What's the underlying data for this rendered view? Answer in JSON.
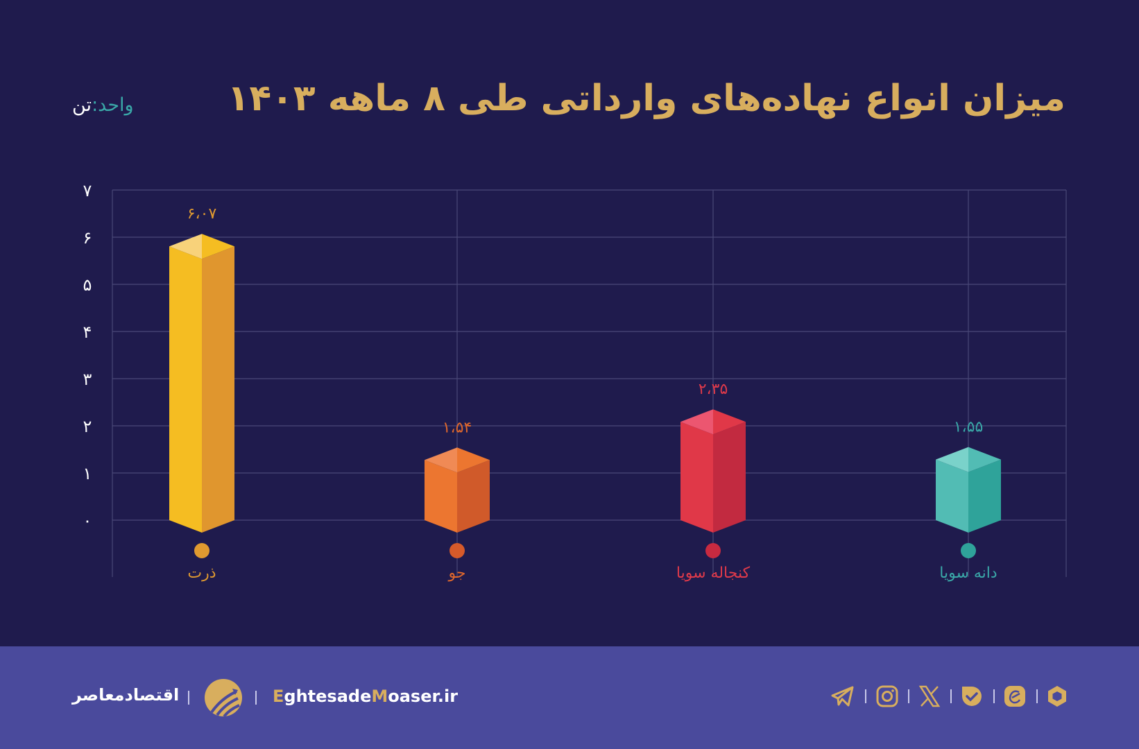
{
  "header": {
    "title": "میزان انواع نهاده‌های وارداتی طی ۸ ماهه ۱۴۰۳",
    "unit_label": "واحد:",
    "unit_value": "تن"
  },
  "colors": {
    "background": "#1f1b4d",
    "title": "#d8ae5e",
    "grid": "#4a4878",
    "footer": "#4a4a9c",
    "accent": "#d8ae5e"
  },
  "chart_data": {
    "type": "bar",
    "title": "میزان انواع نهاده‌های وارداتی طی ۸ ماهه ۱۴۰۳",
    "ylabel": "تن",
    "xlabel": "",
    "ylim": [
      0,
      7
    ],
    "yticks": [
      "۰",
      "۱",
      "۲",
      "۳",
      "۴",
      "۵",
      "۶",
      "۷"
    ],
    "grid": true,
    "categories": [
      "ذرت",
      "جو",
      "کنجاله سویا",
      "دانه سویا"
    ],
    "values": [
      6.07,
      1.54,
      2.35,
      1.55
    ],
    "value_labels": [
      "۶،۰۷",
      "۱،۵۴",
      "۲،۳۵",
      "۱،۵۵"
    ],
    "series_colors": [
      {
        "front": "#f5bd22",
        "side": "#e0962e",
        "top_left": "#f8d27a",
        "top_right": "#f5bd22",
        "label": "#e09a30",
        "dot": "#e09a30"
      },
      {
        "front": "#ec7630",
        "side": "#d05a2a",
        "top_left": "#f08a55",
        "top_right": "#ec7630",
        "label": "#e0682c",
        "dot": "#d65a2a"
      },
      {
        "front": "#e03848",
        "side": "#c22a40",
        "top_left": "#ec5670",
        "top_right": "#e03848",
        "label": "#e03a4a",
        "dot": "#c82a40"
      },
      {
        "front": "#52bcb4",
        "side": "#2fa39a",
        "top_left": "#7ad2ca",
        "top_right": "#52bcb4",
        "label": "#3aa8a8",
        "dot": "#2fa39a"
      }
    ]
  },
  "footer": {
    "brand_fa": "اقتصادمعاصر",
    "site_prefix_accent": "E",
    "site_part1": "ghtesade",
    "site_mid_accent": "M",
    "site_part2": "oaser.ir",
    "social_icons": [
      "telegram-icon",
      "instagram-icon",
      "x-icon",
      "bale-icon",
      "eitaa-icon",
      "rubika-icon"
    ]
  }
}
